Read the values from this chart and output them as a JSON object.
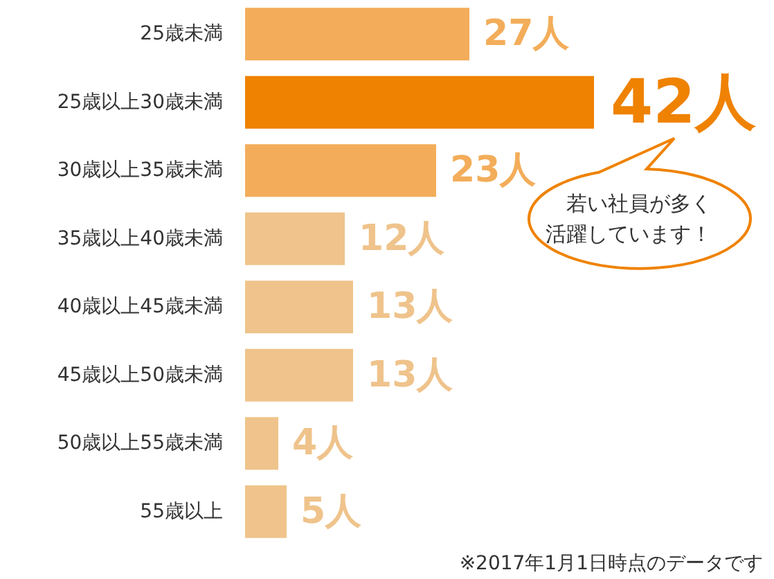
{
  "chart_data": {
    "type": "bar",
    "orientation": "horizontal",
    "categories": [
      "25歳未満",
      "25歳以上30歳未満",
      "30歳以上35歳未満",
      "35歳以上40歳未満",
      "40歳以上45歳未満",
      "45歳以上50歳未満",
      "50歳以上55歳未満",
      "55歳以上"
    ],
    "values": [
      27,
      42,
      23,
      12,
      13,
      13,
      4,
      5
    ],
    "colors": [
      "#f3ad5a",
      "#ef8200",
      "#f3ad5a",
      "#efc38b",
      "#efc38b",
      "#efc38b",
      "#efc38b",
      "#efc38b"
    ],
    "value_labels": [
      "27人",
      "42人",
      "23人",
      "12人",
      "13人",
      "13人",
      "4人",
      "5人"
    ],
    "annotations": [
      "若い社員が多く活躍しています！",
      "※2017年1月1日時点のデータです"
    ]
  }
}
